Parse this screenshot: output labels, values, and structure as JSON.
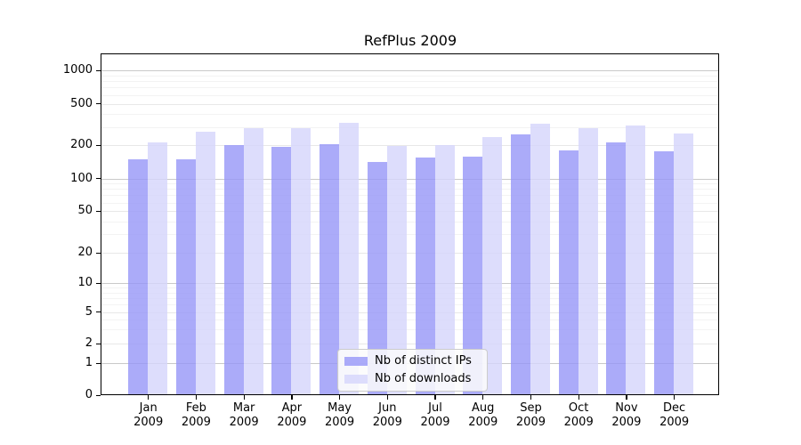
{
  "title": "RefPlus 2009",
  "colors": {
    "bar_distinct_ips": "#9696f8",
    "bar_downloads": "#d6d6fb",
    "grid_major": "#c9c9c9",
    "grid_mid": "#e8e8e8",
    "grid_minor": "#f3f3f3"
  },
  "chart_data": {
    "type": "bar",
    "title": "RefPlus 2009",
    "categories": [
      "Jan",
      "Feb",
      "Mar",
      "Apr",
      "May",
      "Jun",
      "Jul",
      "Aug",
      "Sep",
      "Oct",
      "Nov",
      "Dec"
    ],
    "x_tick_year": "2009",
    "series": [
      {
        "name": "Nb of distinct IPs",
        "values": [
          150,
          150,
          200,
          195,
          205,
          140,
          155,
          158,
          255,
          180,
          215,
          177
        ]
      },
      {
        "name": "Nb of downloads",
        "values": [
          215,
          270,
          295,
          290,
          330,
          198,
          202,
          240,
          325,
          295,
          310,
          258
        ]
      }
    ],
    "xlabel": "",
    "ylabel": "",
    "yscale": "log-like with linear region near zero",
    "ytick_labels": [
      "0",
      "1",
      "2",
      "5",
      "10",
      "20",
      "50",
      "100",
      "200",
      "500",
      "1000"
    ],
    "ylim": [
      0,
      1300
    ],
    "grid": true,
    "legend_position": "lower center"
  }
}
